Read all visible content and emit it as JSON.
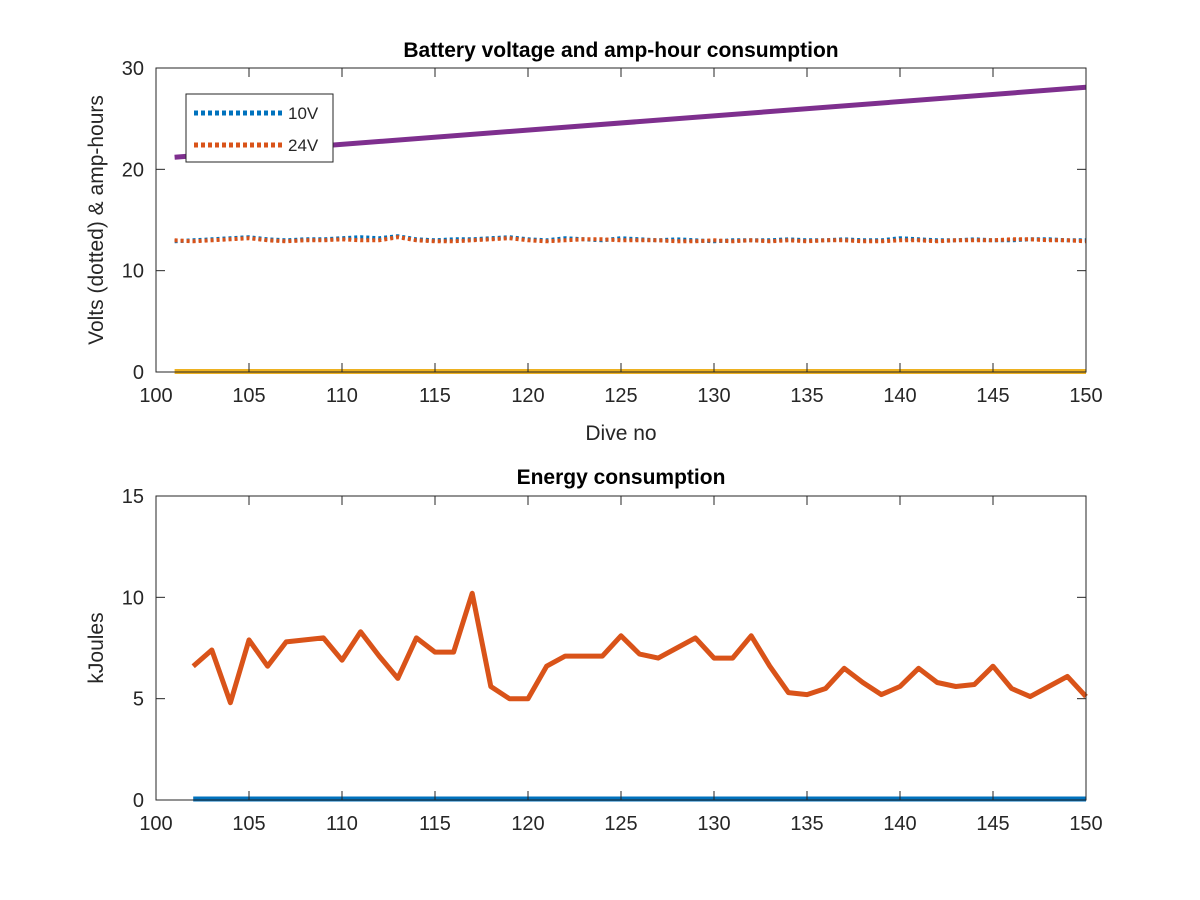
{
  "chart_data": [
    {
      "type": "line",
      "title": "Battery voltage and amp-hour consumption",
      "xlabel": "Dive no",
      "ylabel": "Volts (dotted) & amp-hours",
      "xlim": [
        100,
        150
      ],
      "ylim": [
        0,
        30
      ],
      "xticks": [
        100,
        105,
        110,
        115,
        120,
        125,
        130,
        135,
        140,
        145,
        150
      ],
      "yticks": [
        0,
        10,
        20,
        30
      ],
      "grid": false,
      "legend": {
        "placement": "top-left",
        "entries": [
          "10V",
          "24V"
        ]
      },
      "series": [
        {
          "name": "10V",
          "style": "dotted",
          "color": "#0072BD",
          "x": [
            101,
            102,
            103,
            104,
            105,
            106,
            107,
            108,
            109,
            110,
            111,
            112,
            113,
            114,
            115,
            116,
            117,
            118,
            119,
            120,
            121,
            122,
            123,
            124,
            125,
            126,
            127,
            128,
            129,
            130,
            131,
            132,
            133,
            134,
            135,
            136,
            137,
            138,
            139,
            140,
            141,
            142,
            143,
            144,
            145,
            146,
            147,
            148,
            149,
            150
          ],
          "y": [
            12.9,
            13.0,
            13.1,
            13.2,
            13.3,
            13.1,
            13.0,
            13.1,
            13.1,
            13.2,
            13.3,
            13.2,
            13.4,
            13.1,
            13.0,
            13.1,
            13.1,
            13.2,
            13.3,
            13.1,
            13.0,
            13.2,
            13.1,
            13.0,
            13.2,
            13.1,
            13.0,
            13.1,
            13.0,
            12.9,
            13.0,
            13.0,
            13.0,
            13.1,
            13.0,
            13.0,
            13.1,
            13.0,
            13.0,
            13.2,
            13.1,
            13.0,
            13.0,
            13.1,
            13.0,
            13.0,
            13.1,
            13.1,
            13.0,
            13.0
          ]
        },
        {
          "name": "24V",
          "style": "dotted",
          "color": "#D95319",
          "x": [
            101,
            102,
            103,
            104,
            105,
            106,
            107,
            108,
            109,
            110,
            111,
            112,
            113,
            114,
            115,
            116,
            117,
            118,
            119,
            120,
            121,
            122,
            123,
            124,
            125,
            126,
            127,
            128,
            129,
            130,
            131,
            132,
            133,
            134,
            135,
            136,
            137,
            138,
            139,
            140,
            141,
            142,
            143,
            144,
            145,
            146,
            147,
            148,
            149,
            150
          ],
          "y": [
            13.0,
            12.9,
            13.0,
            13.1,
            13.2,
            13.0,
            12.9,
            13.0,
            13.0,
            13.1,
            13.0,
            13.0,
            13.3,
            13.0,
            12.9,
            12.9,
            13.0,
            13.1,
            13.2,
            13.0,
            12.9,
            13.0,
            13.1,
            13.1,
            13.0,
            13.0,
            13.0,
            12.9,
            12.9,
            13.0,
            12.9,
            13.0,
            12.9,
            13.0,
            12.9,
            13.0,
            13.0,
            12.9,
            12.9,
            13.0,
            13.0,
            12.9,
            13.0,
            13.0,
            13.0,
            13.1,
            13.1,
            13.0,
            13.0,
            12.9
          ]
        },
        {
          "style": "solid",
          "color": "#7E2F8E",
          "x": [
            101,
            150
          ],
          "y": [
            21.2,
            28.1
          ]
        },
        {
          "style": "solid",
          "color": "#EDB120",
          "x": [
            101,
            150
          ],
          "y": [
            0.05,
            0.05
          ]
        }
      ]
    },
    {
      "type": "line",
      "title": "Energy consumption",
      "xlabel": "",
      "ylabel": "kJoules",
      "xlim": [
        100,
        150
      ],
      "ylim": [
        0,
        15
      ],
      "xticks": [
        100,
        105,
        110,
        115,
        120,
        125,
        130,
        135,
        140,
        145,
        150
      ],
      "yticks": [
        0,
        5,
        10,
        15
      ],
      "grid": false,
      "series": [
        {
          "style": "solid",
          "color": "#D95319",
          "x": [
            102,
            103,
            104,
            105,
            106,
            107,
            108,
            109,
            110,
            111,
            112,
            113,
            114,
            115,
            116,
            117,
            118,
            119,
            120,
            121,
            122,
            123,
            124,
            125,
            126,
            127,
            128,
            129,
            130,
            131,
            132,
            133,
            134,
            135,
            136,
            137,
            138,
            139,
            140,
            141,
            142,
            143,
            144,
            145,
            146,
            147,
            148,
            149,
            150
          ],
          "y": [
            6.6,
            7.4,
            4.8,
            7.9,
            6.6,
            7.8,
            7.9,
            8.0,
            6.9,
            8.3,
            7.1,
            6.0,
            8.0,
            7.3,
            7.3,
            10.2,
            5.6,
            5.0,
            5.0,
            6.6,
            7.1,
            7.1,
            7.1,
            8.1,
            7.2,
            7.0,
            7.5,
            8.0,
            7.0,
            7.0,
            8.1,
            6.6,
            5.3,
            5.2,
            5.5,
            6.5,
            5.8,
            5.2,
            5.6,
            6.5,
            5.8,
            5.6,
            5.7,
            6.6,
            5.5,
            5.1,
            5.6,
            6.1,
            5.1
          ]
        },
        {
          "style": "solid",
          "color": "#0072BD",
          "x": [
            102,
            150
          ],
          "y": [
            0.05,
            0.05
          ]
        }
      ]
    }
  ]
}
